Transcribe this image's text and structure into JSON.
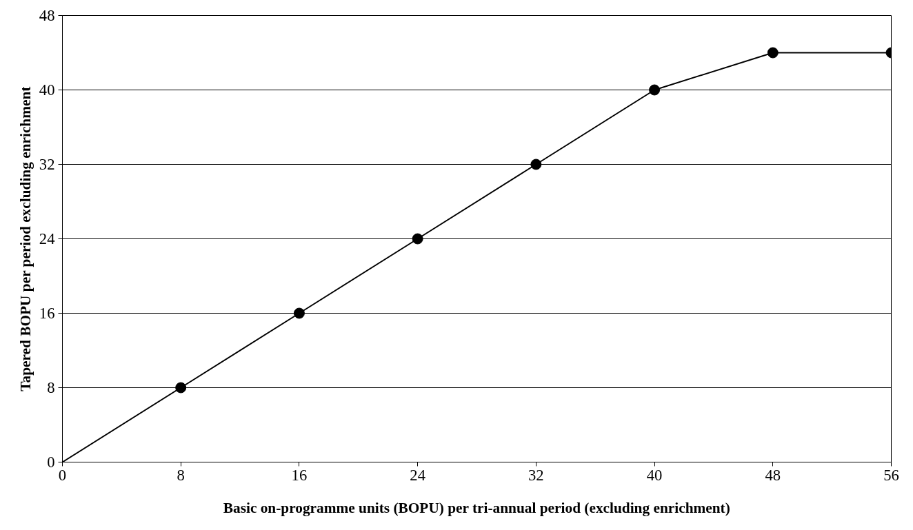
{
  "chart_data": {
    "type": "line",
    "xlabel": "Basic on-programme units (BOPU) per tri-annual period (excluding enrichment)",
    "ylabel": "Tapered BOPU per period excluding enrichment",
    "xlim": [
      0,
      56
    ],
    "ylim": [
      0,
      48
    ],
    "xticks": [
      0,
      8,
      16,
      24,
      32,
      40,
      48,
      56
    ],
    "yticks": [
      0,
      8,
      16,
      24,
      32,
      40,
      48
    ],
    "grid": "y",
    "series": [
      {
        "color": "#000000",
        "marker": "none",
        "x": [
          0,
          8,
          16,
          24,
          32,
          40,
          48,
          56
        ],
        "values": [
          0,
          8,
          16,
          24,
          32,
          40,
          44,
          44
        ]
      },
      {
        "type": "scatter",
        "color": "#000000",
        "marker": "circle",
        "x": [
          8,
          16,
          24,
          32,
          40,
          48,
          56
        ],
        "values": [
          8,
          16,
          24,
          32,
          40,
          44,
          44
        ]
      }
    ]
  }
}
